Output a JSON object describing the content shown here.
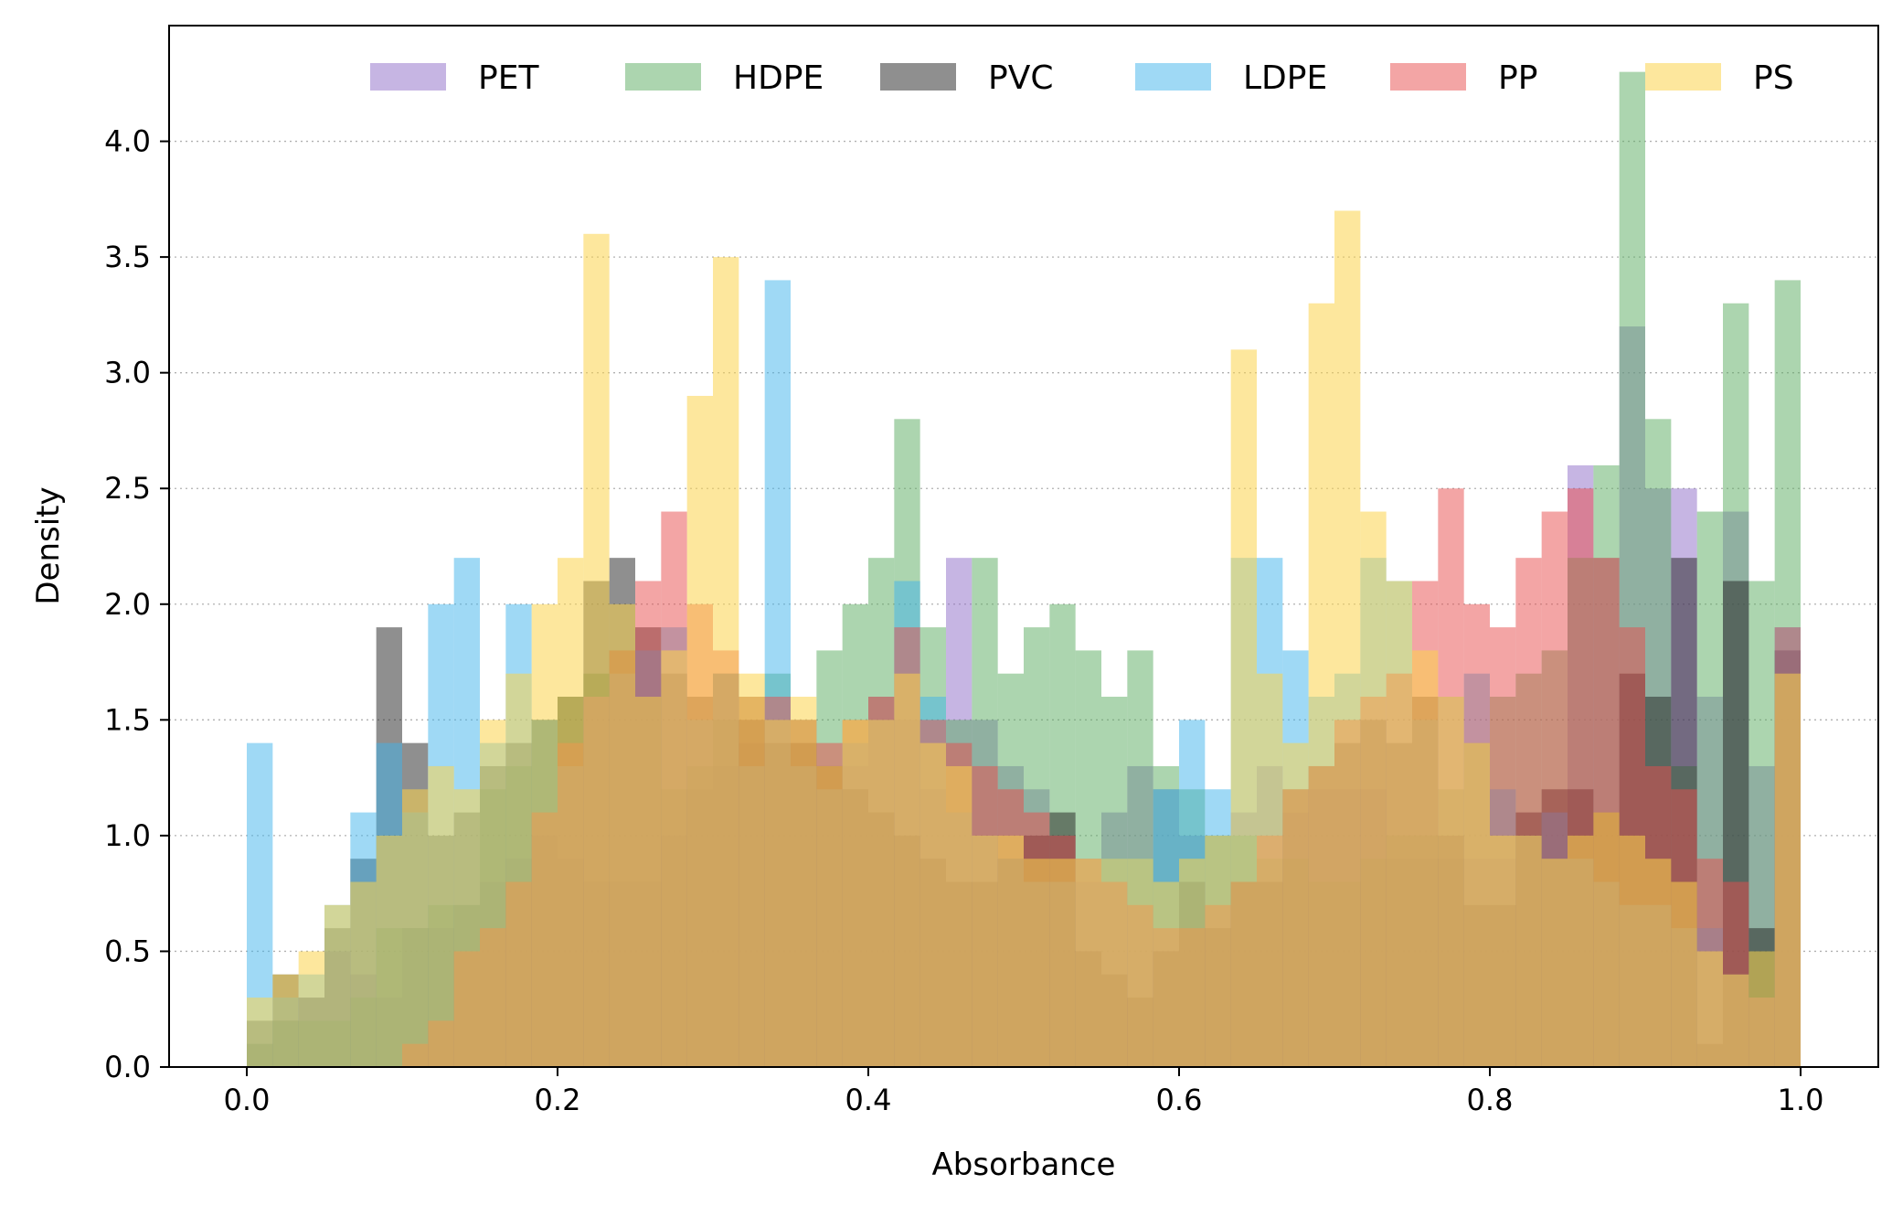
{
  "chart_data": {
    "type": "histogram",
    "title": "",
    "xlabel": "Absorbance",
    "ylabel": "Density",
    "xlim": [
      -0.05,
      1.05
    ],
    "ylim": [
      0,
      4.5
    ],
    "x_ticks": [
      0.0,
      0.2,
      0.4,
      0.6,
      0.8,
      1.0
    ],
    "y_ticks": [
      0.0,
      0.5,
      1.0,
      1.5,
      2.0,
      2.5,
      3.0,
      3.5,
      4.0
    ],
    "x_tick_labels": [
      "0.0",
      "0.2",
      "0.4",
      "0.6",
      "0.8",
      "1.0"
    ],
    "y_tick_labels": [
      "0.0",
      "0.5",
      "1.0",
      "1.5",
      "2.0",
      "2.5",
      "3.0",
      "3.5",
      "4.0"
    ],
    "grid": {
      "y": true,
      "x": false,
      "style": "dotted"
    },
    "legend": {
      "placement": "top",
      "columns": 6
    },
    "bins": 60,
    "series": [
      {
        "name": "PET",
        "color": "#8d6cc8",
        "opacity": 0.5,
        "range": [
          0.0,
          1.0
        ],
        "values": [
          0.1,
          0.2,
          0.3,
          0.5,
          0.4,
          0.3,
          0.6,
          0.6,
          0.7,
          0.8,
          0.9,
          1.0,
          0.9,
          0.8,
          0.8,
          0.8,
          1.0,
          1.2,
          1.3,
          1.4,
          1.5,
          1.5,
          1.3,
          1.3,
          1.6,
          1.5,
          1.2,
          2.2,
          1.5,
          1.3,
          1.2,
          1.0,
          0.8,
          1.1,
          1.3,
          1.2,
          1.0,
          1.0,
          1.1,
          1.3,
          1.1,
          1.2,
          1.2,
          1.2,
          0.9,
          0.9,
          0.9,
          0.9,
          0.9,
          1.0,
          1.1,
          2.6,
          2.2,
          3.2,
          2.5,
          2.5,
          1.6,
          2.4,
          1.3,
          1.8
        ]
      },
      {
        "name": "HDPE",
        "color": "#5aab60",
        "opacity": 0.5,
        "range": [
          0.0,
          1.0
        ],
        "values": [
          0.1,
          0.2,
          0.2,
          0.2,
          0.3,
          0.6,
          0.6,
          0.7,
          0.7,
          1.2,
          1.3,
          1.5,
          1.6,
          1.7,
          1.8,
          1.6,
          1.2,
          1.3,
          1.5,
          1.6,
          1.7,
          1.5,
          1.8,
          2.0,
          2.2,
          2.8,
          1.9,
          1.5,
          2.2,
          1.7,
          1.9,
          2.0,
          1.8,
          1.6,
          1.8,
          1.3,
          1.2,
          1.0,
          1.0,
          0.9,
          0.9,
          0.8,
          0.8,
          0.9,
          1.0,
          1.0,
          1.2,
          1.4,
          1.6,
          1.7,
          1.8,
          2.2,
          2.6,
          4.3,
          2.8,
          1.3,
          2.4,
          3.3,
          2.1,
          3.4
        ]
      },
      {
        "name": "PVC",
        "color": "#1f1f1f",
        "opacity": 0.5,
        "range": [
          0.0,
          1.0
        ],
        "values": [
          0.2,
          0.4,
          0.3,
          0.6,
          0.9,
          1.9,
          1.4,
          1.0,
          1.1,
          1.3,
          1.4,
          1.5,
          1.6,
          2.1,
          2.2,
          1.9,
          1.7,
          1.6,
          1.7,
          1.5,
          1.4,
          1.4,
          1.3,
          1.2,
          1.1,
          1.0,
          0.9,
          0.8,
          0.8,
          0.9,
          1.0,
          1.1,
          0.5,
          0.4,
          0.3,
          0.5,
          0.8,
          0.6,
          0.8,
          0.8,
          1.2,
          1.3,
          1.4,
          1.5,
          1.4,
          1.6,
          1.0,
          0.7,
          0.7,
          1.1,
          1.2,
          1.2,
          1.1,
          1.7,
          1.6,
          2.2,
          0.1,
          2.1,
          0.6,
          1.8
        ]
      },
      {
        "name": "LDPE",
        "color": "#3fb4ec",
        "opacity": 0.5,
        "range": [
          0.0,
          1.0
        ],
        "values": [
          1.4,
          0.3,
          0.4,
          0.7,
          1.1,
          1.4,
          1.1,
          2.0,
          2.2,
          1.4,
          2.0,
          1.5,
          1.3,
          1.6,
          1.7,
          1.8,
          1.9,
          1.5,
          1.7,
          1.3,
          3.4,
          1.3,
          1.2,
          1.4,
          1.5,
          2.1,
          1.6,
          1.1,
          1.0,
          0.9,
          0.8,
          0.8,
          0.9,
          0.9,
          0.9,
          1.2,
          1.5,
          1.2,
          2.2,
          2.2,
          1.8,
          1.6,
          1.7,
          2.2,
          2.1,
          1.5,
          1.6,
          1.7,
          1.2,
          1.0,
          1.1,
          0.9,
          0.8,
          0.7,
          0.7,
          0.6,
          0.6,
          0.4,
          0.3,
          1.9
        ]
      },
      {
        "name": "PP",
        "color": "#e74c4c",
        "opacity": 0.5,
        "range": [
          0.0,
          1.0
        ],
        "values": [
          0.0,
          0.0,
          0.0,
          0.0,
          0.0,
          0.0,
          0.1,
          0.2,
          0.5,
          0.6,
          0.8,
          1.1,
          1.4,
          1.6,
          1.8,
          2.1,
          2.4,
          2.0,
          1.8,
          1.6,
          1.6,
          1.5,
          1.4,
          1.5,
          1.6,
          1.9,
          1.5,
          1.4,
          1.3,
          1.2,
          1.1,
          1.0,
          0.9,
          0.8,
          0.7,
          0.6,
          0.6,
          0.7,
          0.8,
          1.0,
          1.2,
          1.3,
          1.5,
          1.6,
          1.7,
          2.1,
          2.5,
          2.0,
          1.9,
          2.2,
          2.4,
          2.5,
          2.2,
          1.9,
          1.3,
          1.2,
          0.9,
          0.8,
          0.3,
          1.9
        ]
      },
      {
        "name": "PS",
        "color": "#fcd34d",
        "opacity": 0.55,
        "range": [
          0.0,
          1.0
        ],
        "values": [
          0.3,
          0.4,
          0.5,
          0.7,
          0.8,
          1.0,
          1.2,
          1.3,
          1.2,
          1.5,
          1.7,
          2.0,
          2.2,
          3.6,
          2.0,
          1.6,
          1.8,
          2.9,
          3.5,
          1.7,
          1.5,
          1.6,
          1.3,
          1.5,
          1.5,
          1.7,
          1.4,
          1.3,
          1.0,
          1.0,
          0.9,
          0.9,
          0.9,
          0.9,
          0.9,
          0.8,
          0.9,
          1.0,
          3.1,
          1.7,
          1.4,
          3.3,
          3.7,
          2.4,
          2.1,
          1.8,
          1.6,
          1.4,
          1.0,
          1.0,
          0.9,
          1.0,
          1.1,
          1.0,
          0.9,
          0.8,
          0.5,
          0.4,
          0.5,
          1.7
        ]
      }
    ]
  }
}
